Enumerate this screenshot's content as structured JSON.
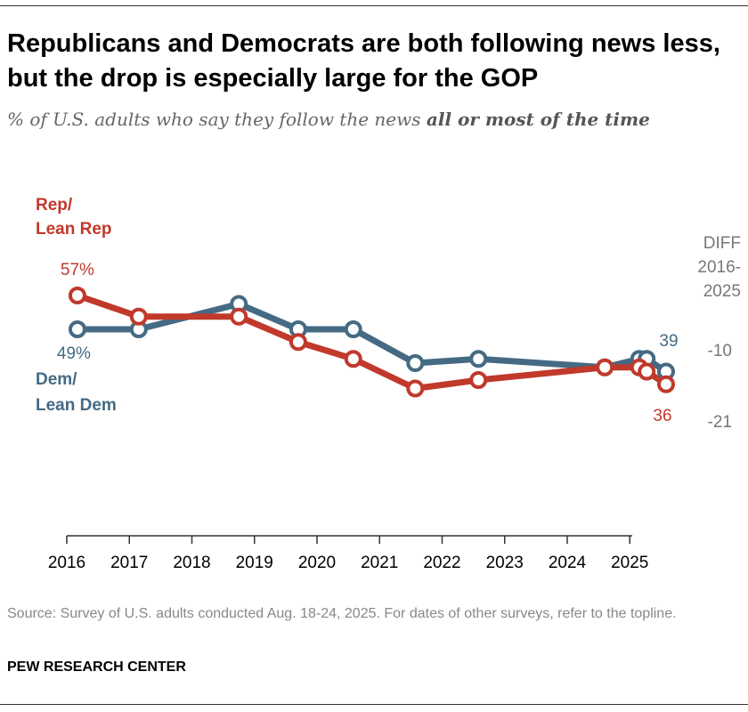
{
  "title": "Republicans and Democrats are both following news less, but the drop is especially large for the GOP",
  "subtitle_prefix": "% of U.S. adults who say they follow the news ",
  "subtitle_emphasis": "all or most of the time",
  "source": "Source: Survey of U.S. adults conducted Aug. 18-24, 2025. For dates of other surveys, refer to the topline.",
  "brand": "PEW RESEARCH CENTER",
  "chart_data": {
    "type": "line",
    "x_ticks": [
      "2016",
      "2017",
      "2018",
      "2019",
      "2020",
      "2021",
      "2022",
      "2023",
      "2024",
      "2025"
    ],
    "xlim": [
      2016,
      2025.6
    ],
    "grid": false,
    "colors": {
      "rep": "#c0392b",
      "dem": "#456a84"
    },
    "series": [
      {
        "name": "Rep/ Lean Rep",
        "name_lines": [
          "Rep/",
          "Lean Rep"
        ],
        "x": [
          2016.17,
          2017.15,
          2018.75,
          2019.7,
          2020.58,
          2021.57,
          2022.58,
          2024.6,
          2025.15,
          2025.27,
          2025.58
        ],
        "values": [
          57,
          52,
          52,
          46,
          42,
          35,
          37,
          40,
          40,
          39,
          36
        ],
        "labels": {
          "first": "57%",
          "last": "36"
        },
        "diff": "-21"
      },
      {
        "name": "Dem/ Lean Dem",
        "name_lines": [
          "Dem/",
          "Lean Dem"
        ],
        "x": [
          2016.17,
          2017.15,
          2018.75,
          2019.7,
          2020.58,
          2021.57,
          2022.58,
          2024.6,
          2025.15,
          2025.27,
          2025.58
        ],
        "values": [
          49,
          49,
          55,
          49,
          49,
          41,
          42,
          40,
          42,
          42,
          39
        ],
        "labels": {
          "first": "49%",
          "last": "39"
        },
        "diff": "-10"
      }
    ],
    "diff_header": [
      "DIFF",
      "2016-",
      "2025"
    ]
  }
}
